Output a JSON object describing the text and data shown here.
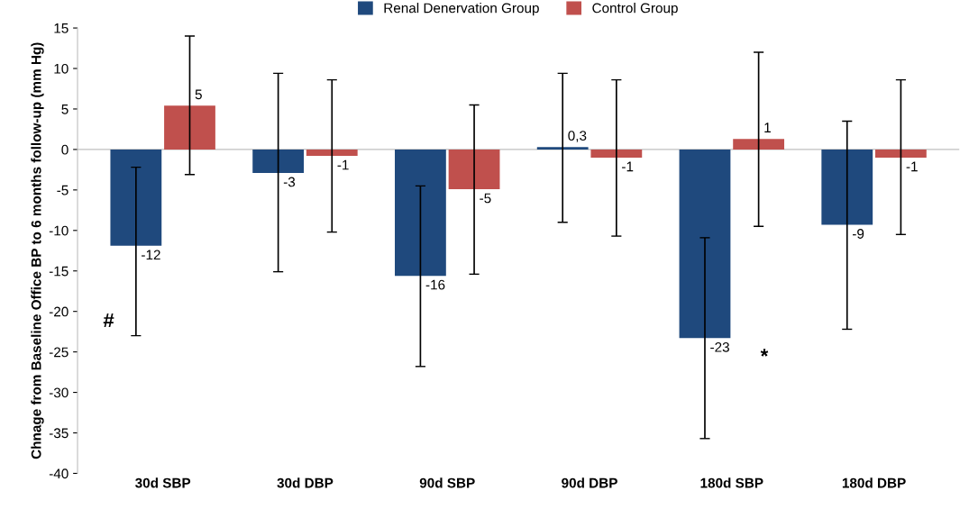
{
  "chart_data": {
    "type": "bar",
    "ylabel": "Chnage from Baseline Office BP to 6 months follow-up (mm Hg)",
    "categories": [
      "30d SBP",
      "30d DBP",
      "90d SBP",
      "90d DBP",
      "180d SBP",
      "180d DBP"
    ],
    "series": [
      {
        "name": "Renal Denervation Group",
        "color": "#1f497d",
        "values": [
          -11.9,
          -2.9,
          -15.6,
          0.3,
          -23.3,
          -9.3
        ],
        "value_labels": [
          "-12",
          "-3",
          "-16",
          "0,3",
          "-23",
          "-9"
        ],
        "errors": [
          [
            -23,
            -2.2
          ],
          [
            -15.1,
            9.4
          ],
          [
            -26.8,
            -4.5
          ],
          [
            -9,
            9.4
          ],
          [
            -35.7,
            -10.9
          ],
          [
            -22.2,
            3.5
          ]
        ]
      },
      {
        "name": "Control Group",
        "color": "#c0504d",
        "values": [
          5.4,
          -0.8,
          -4.9,
          -1.0,
          1.3,
          -1.0
        ],
        "value_labels": [
          "5",
          "-1",
          "-5",
          "-1",
          "1",
          "-1"
        ],
        "errors": [
          [
            -3.1,
            14
          ],
          [
            -10.2,
            8.6
          ],
          [
            -15.4,
            5.5
          ],
          [
            -10.7,
            8.6
          ],
          [
            -9.5,
            12
          ],
          [
            -10.5,
            8.6
          ]
        ]
      }
    ],
    "ylim": [
      -40,
      15
    ],
    "yticks": [
      -40,
      -35,
      -30,
      -25,
      -20,
      -15,
      -10,
      -5,
      0,
      5,
      10,
      15
    ],
    "ref_lines": [
      {
        "axis": "y",
        "value": 0,
        "label": null,
        "color": "#bfbfbf"
      }
    ],
    "annotations": [
      "#",
      "*"
    ],
    "legend": "top",
    "grid": false
  }
}
